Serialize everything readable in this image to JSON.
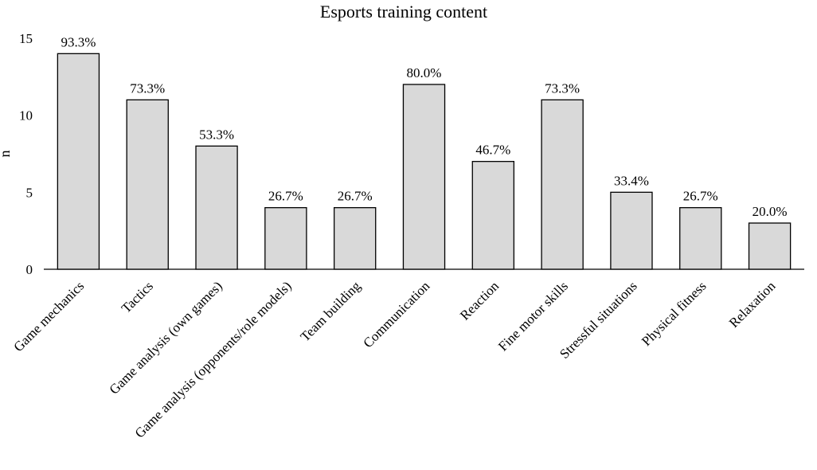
{
  "chart_data": {
    "type": "bar",
    "title": "Esports training content",
    "ylabel": "n",
    "xlabel": "",
    "ylim": [
      0,
      15
    ],
    "yticks": [
      0,
      5,
      10,
      15
    ],
    "grid": false,
    "categories": [
      "Game mechanics",
      "Tactics",
      "Game analysis (own games)",
      "Game analysis (opponents/role models)",
      "Team building",
      "Communication",
      "Reaction",
      "Fine motor skills",
      "Stressful situations",
      "Physical fitness",
      "Relaxation"
    ],
    "values": [
      14,
      11,
      8,
      4,
      4,
      12,
      7,
      11,
      5,
      4,
      3
    ],
    "data_labels": [
      "93.3%",
      "73.3%",
      "53.3%",
      "26.7%",
      "26.7%",
      "80.0%",
      "46.7%",
      "73.3%",
      "33.4%",
      "26.7%",
      "20.0%"
    ],
    "colors": {
      "bar_fill": "#d9d9d9",
      "bar_stroke": "#000000"
    }
  }
}
